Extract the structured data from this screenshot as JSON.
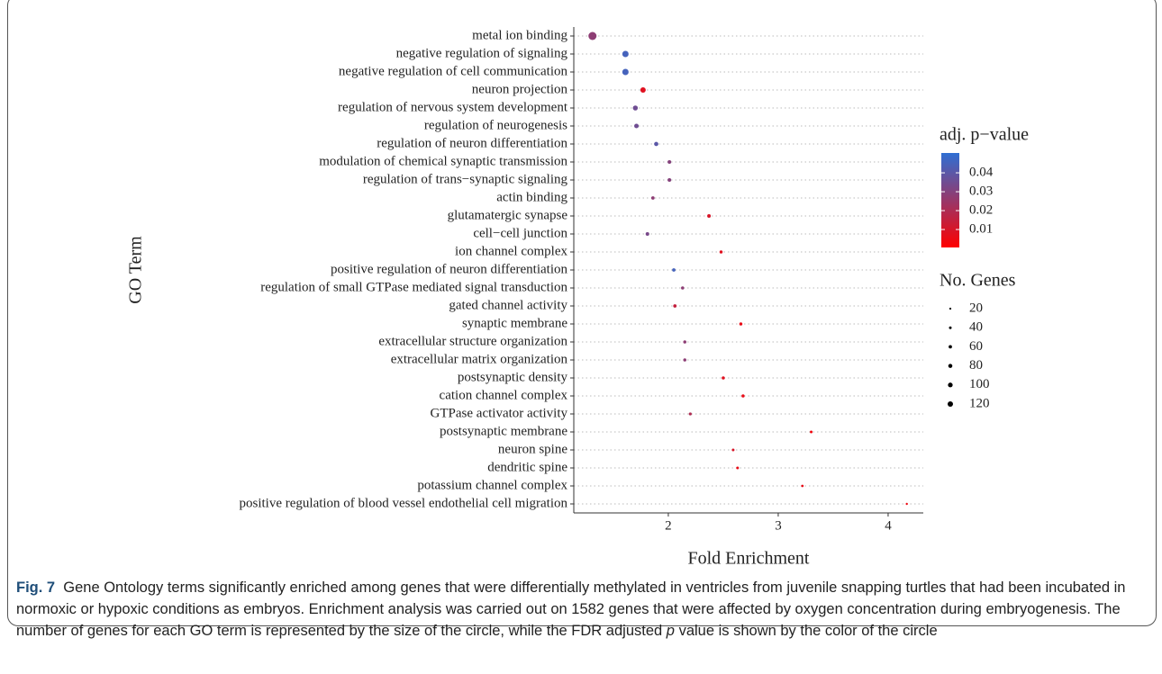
{
  "chart_data": {
    "type": "dotplot",
    "categories": [
      "metal ion binding",
      "negative regulation of signaling",
      "negative regulation of cell communication",
      "neuron projection",
      "regulation of nervous system development",
      "regulation of neurogenesis",
      "regulation of neuron differentiation",
      "modulation of chemical synaptic transmission",
      "regulation of trans−synaptic signaling",
      "actin binding",
      "glutamatergic synapse",
      "cell−cell junction",
      "ion channel complex",
      "positive regulation of neuron differentiation",
      "regulation of small GTPase mediated signal transduction",
      "gated channel activity",
      "synaptic membrane",
      "extracellular structure organization",
      "extracellular matrix organization",
      "postsynaptic density",
      "cation channel complex",
      "GTPase activator activity",
      "postsynaptic membrane",
      "neuron spine",
      "dendritic spine",
      "potassium channel complex",
      "positive regulation of blood vessel endothelial cell migration"
    ],
    "values": [
      1.31,
      1.61,
      1.61,
      1.77,
      1.7,
      1.71,
      1.89,
      2.01,
      2.01,
      1.86,
      2.37,
      1.81,
      2.48,
      2.05,
      2.13,
      2.06,
      2.66,
      2.15,
      2.15,
      2.5,
      2.68,
      2.2,
      3.3,
      2.59,
      2.63,
      3.22,
      4.17
    ],
    "gene_counts": [
      140,
      100,
      100,
      80,
      70,
      60,
      55,
      40,
      40,
      35,
      40,
      40,
      30,
      35,
      30,
      35,
      30,
      30,
      30,
      30,
      30,
      25,
      20,
      20,
      20,
      15,
      8
    ],
    "p_values": [
      0.028,
      0.045,
      0.045,
      0.008,
      0.035,
      0.035,
      0.04,
      0.03,
      0.03,
      0.028,
      0.01,
      0.033,
      0.008,
      0.045,
      0.028,
      0.015,
      0.006,
      0.028,
      0.028,
      0.008,
      0.006,
      0.02,
      0.004,
      0.01,
      0.006,
      0.006,
      0.005
    ],
    "x_label": "Fold Enrichment",
    "y_label": "GO Term",
    "xlim": [
      1.14,
      4.32
    ],
    "xticks": [
      2,
      3,
      4
    ],
    "grid": true,
    "color_legend_title": "adj. p−value",
    "color_low": "#ff0000",
    "color_high": "#2f6fd3",
    "color_lim": [
      0.0005,
      0.0505
    ],
    "color_ticks": [
      0.01,
      0.02,
      0.03,
      0.04
    ],
    "size_legend_title": "No. Genes",
    "size_breaks": [
      20,
      40,
      60,
      80,
      100,
      120
    ]
  },
  "caption": {
    "label": "Fig. 7",
    "text": "Gene Ontology terms significantly enriched among genes that were differentially methylated in ventricles from juvenile snapping turtles that had been incubated in normoxic or hypoxic conditions as embryos. Enrichment analysis was carried out on 1582 genes that were affected by oxygen concentration during embryogenesis. The number of genes for each GO term is represented by the size of the circle, while the FDR adjusted",
    "italic": "p",
    "text_end": "value is shown by the color of the circle"
  }
}
